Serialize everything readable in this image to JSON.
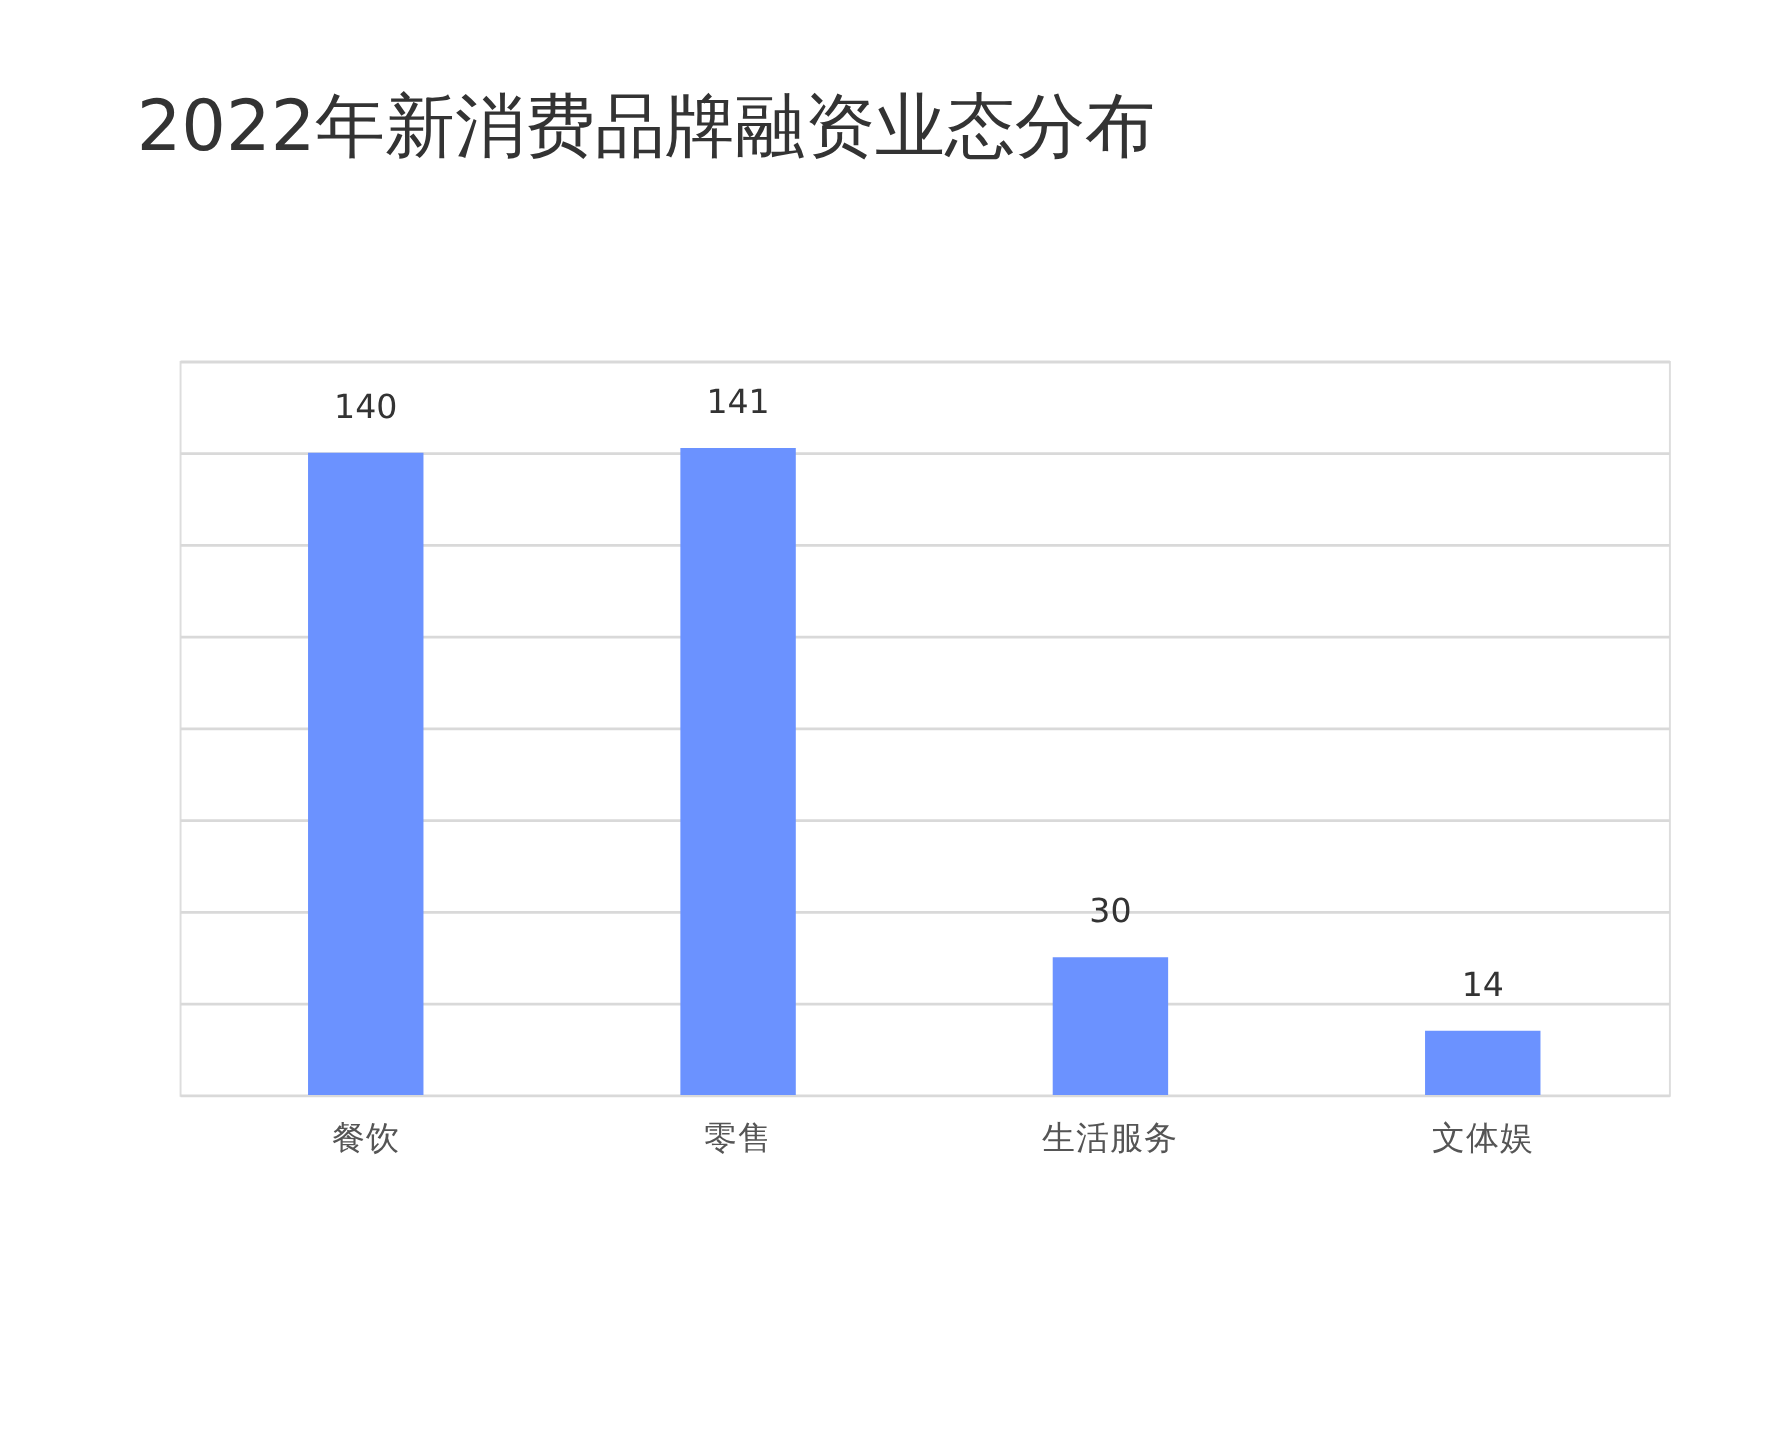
{
  "chart_data": {
    "type": "bar",
    "title": "2022年新消费品牌融资业态分布",
    "categories": [
      "餐饮",
      "零售",
      "生活服务",
      "文体娱"
    ],
    "values": [
      140,
      141,
      30,
      14
    ],
    "color": "#6b92ff",
    "ylim": [
      0,
      160
    ],
    "yticks": [
      {
        "value": 0,
        "label": null
      },
      {
        "value": 20,
        "label": null
      },
      {
        "value": 40,
        "label": null
      },
      {
        "value": 60,
        "label": null
      },
      {
        "value": 80,
        "label": null
      },
      {
        "value": 100,
        "label": null
      },
      {
        "value": 120,
        "label": null
      },
      {
        "value": 140,
        "label": null
      },
      {
        "value": 160,
        "label": null
      }
    ],
    "grid": "y",
    "tick_labels": "x",
    "data_labels": true
  }
}
